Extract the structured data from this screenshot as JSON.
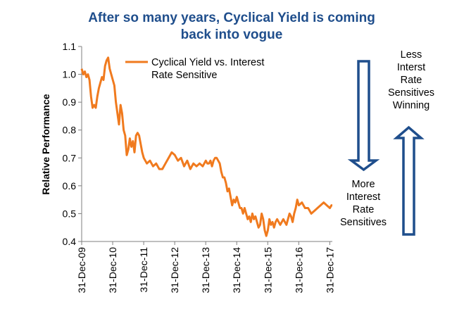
{
  "chart_data": {
    "type": "line",
    "title_lines": [
      "After so many years, Cyclical Yield is coming",
      "back into vogue"
    ],
    "ylabel": "Relative Performance",
    "xlabel": "",
    "ylim": [
      0.4,
      1.1
    ],
    "yticks": [
      "0.4",
      "0.5",
      "0.6",
      "0.7",
      "0.8",
      "0.9",
      "1.0",
      "1.1"
    ],
    "xlim": [
      2009.997,
      2018.08
    ],
    "xticks": [
      {
        "label": "31-Dec-09",
        "x": 2009.997
      },
      {
        "label": "31-Dec-10",
        "x": 2010.997
      },
      {
        "label": "31-Dec-11",
        "x": 2011.997
      },
      {
        "label": "31-Dec-12",
        "x": 2012.997
      },
      {
        "label": "31-Dec-13",
        "x": 2013.997
      },
      {
        "label": "31-Dec-14",
        "x": 2014.997
      },
      {
        "label": "31-Dec-15",
        "x": 2015.997
      },
      {
        "label": "31-Dec-16",
        "x": 2016.997
      },
      {
        "label": "31-Dec-17",
        "x": 2017.997
      }
    ],
    "grid": false,
    "legend_position": "top-left",
    "series": [
      {
        "name": "Cyclical Yield vs. Interest Rate Sensitive",
        "color": "#f07a1e",
        "x": [
          2009.997,
          2010.05,
          2010.1,
          2010.15,
          2010.2,
          2010.25,
          2010.3,
          2010.35,
          2010.4,
          2010.45,
          2010.5,
          2010.55,
          2010.6,
          2010.65,
          2010.7,
          2010.75,
          2010.8,
          2010.85,
          2010.9,
          2010.95,
          2011.0,
          2011.05,
          2011.1,
          2011.15,
          2011.2,
          2011.25,
          2011.3,
          2011.35,
          2011.4,
          2011.45,
          2011.5,
          2011.55,
          2011.6,
          2011.65,
          2011.7,
          2011.75,
          2011.8,
          2011.85,
          2011.9,
          2011.95,
          2012.0,
          2012.1,
          2012.2,
          2012.3,
          2012.4,
          2012.5,
          2012.6,
          2012.7,
          2012.8,
          2012.9,
          2013.0,
          2013.1,
          2013.2,
          2013.3,
          2013.4,
          2013.5,
          2013.6,
          2013.7,
          2013.8,
          2013.9,
          2014.0,
          2014.05,
          2014.1,
          2014.15,
          2014.2,
          2014.25,
          2014.3,
          2014.35,
          2014.4,
          2014.45,
          2014.5,
          2014.55,
          2014.6,
          2014.65,
          2014.7,
          2014.75,
          2014.8,
          2014.85,
          2014.9,
          2014.95,
          2015.0,
          2015.05,
          2015.1,
          2015.15,
          2015.2,
          2015.25,
          2015.3,
          2015.35,
          2015.4,
          2015.45,
          2015.5,
          2015.55,
          2015.6,
          2015.65,
          2015.7,
          2015.75,
          2015.8,
          2015.85,
          2015.9,
          2015.95,
          2016.0,
          2016.05,
          2016.1,
          2016.15,
          2016.2,
          2016.25,
          2016.3,
          2016.35,
          2016.4,
          2016.45,
          2016.5,
          2016.55,
          2016.6,
          2016.65,
          2016.7,
          2016.75,
          2016.8,
          2016.85,
          2016.9,
          2016.95,
          2017.0,
          2017.1,
          2017.2,
          2017.3,
          2017.4,
          2017.5,
          2017.6,
          2017.7,
          2017.8,
          2017.9,
          2018.0,
          2018.05,
          2018.08
        ],
        "y": [
          1.02,
          1.0,
          1.01,
          0.99,
          1.0,
          0.98,
          0.92,
          0.88,
          0.89,
          0.88,
          0.92,
          0.95,
          0.97,
          0.99,
          0.98,
          1.03,
          1.05,
          1.06,
          1.02,
          1.0,
          0.98,
          0.96,
          0.9,
          0.86,
          0.82,
          0.89,
          0.86,
          0.8,
          0.78,
          0.71,
          0.73,
          0.77,
          0.74,
          0.76,
          0.72,
          0.78,
          0.79,
          0.78,
          0.75,
          0.72,
          0.7,
          0.68,
          0.69,
          0.67,
          0.68,
          0.66,
          0.66,
          0.68,
          0.7,
          0.72,
          0.71,
          0.69,
          0.7,
          0.67,
          0.69,
          0.66,
          0.68,
          0.67,
          0.68,
          0.67,
          0.69,
          0.68,
          0.68,
          0.69,
          0.67,
          0.69,
          0.7,
          0.7,
          0.69,
          0.68,
          0.65,
          0.63,
          0.63,
          0.61,
          0.58,
          0.59,
          0.56,
          0.53,
          0.55,
          0.54,
          0.56,
          0.54,
          0.52,
          0.52,
          0.5,
          0.52,
          0.5,
          0.48,
          0.49,
          0.47,
          0.5,
          0.48,
          0.49,
          0.47,
          0.45,
          0.46,
          0.5,
          0.48,
          0.44,
          0.42,
          0.44,
          0.48,
          0.46,
          0.47,
          0.45,
          0.47,
          0.48,
          0.47,
          0.46,
          0.47,
          0.48,
          0.47,
          0.46,
          0.48,
          0.5,
          0.49,
          0.47,
          0.5,
          0.52,
          0.55,
          0.53,
          0.54,
          0.52,
          0.52,
          0.5,
          0.51,
          0.52,
          0.53,
          0.54,
          0.53,
          0.52,
          0.53,
          0.53
        ]
      }
    ],
    "annotations": {
      "top_right_lines": [
        "Less",
        "Interst",
        "Rate",
        "Sensitives",
        "Winning"
      ],
      "bottom_right_lines": [
        "More",
        "Interest",
        "Rate",
        "Sensitives"
      ],
      "arrow_color": "#1f4e8c"
    }
  }
}
